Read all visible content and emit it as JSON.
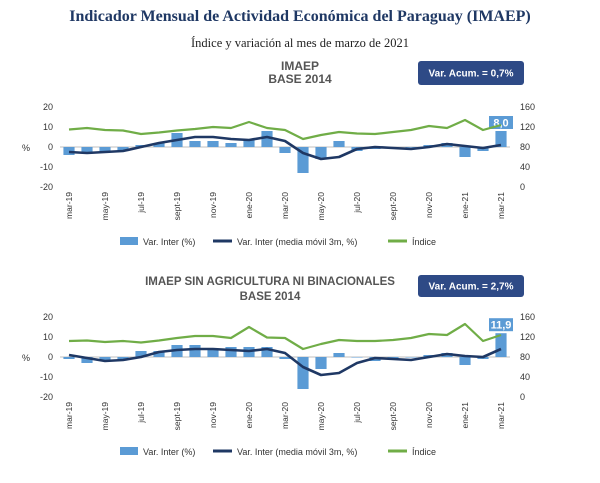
{
  "header": {
    "title": "Indicador Mensual de Actividad Económica del Paraguay (IMAEP)",
    "subtitle": "Índice y variación al mes de marzo de 2021"
  },
  "chart_data": [
    {
      "type": "bar",
      "title": "IMAEP",
      "subtitle": "BASE 2014",
      "badge": "Var. Acum. = 0,7%",
      "ylabel": "%",
      "ylim": [
        -20,
        20
      ],
      "yticks": [
        20,
        10,
        0,
        -10,
        -20
      ],
      "y2lim": [
        0,
        160
      ],
      "y2ticks": [
        160,
        120,
        80,
        40,
        0
      ],
      "tick_labels": [
        "mar-19",
        "may-19",
        "jul-19",
        "sept-19",
        "nov-19",
        "ene-20",
        "mar-20",
        "may-20",
        "jul-20",
        "sept-20",
        "nov-20",
        "ene-21",
        "mar-21"
      ],
      "last_label": "8,0",
      "legend": [
        "Var. Inter (%)",
        "Var. Inter (media móvil 3m, %)",
        "Índice"
      ],
      "colors": {
        "bar": "#5b9bd5",
        "moving_avg": "#1f3864",
        "index": "#70ad47",
        "badge": "#2e4a86"
      },
      "categories": [
        "mar-19",
        "abr-19",
        "may-19",
        "jun-19",
        "jul-19",
        "ago-19",
        "sept-19",
        "oct-19",
        "nov-19",
        "dic-19",
        "ene-20",
        "feb-20",
        "mar-20",
        "abr-20",
        "may-20",
        "jun-20",
        "jul-20",
        "ago-20",
        "sept-20",
        "oct-20",
        "nov-20",
        "dic-20",
        "ene-21",
        "feb-21",
        "mar-21"
      ],
      "series": [
        {
          "name": "Var. Inter (%)",
          "axis": "left",
          "values": [
            -4,
            -3,
            -2,
            -2,
            1,
            2,
            7,
            3,
            3,
            2,
            4,
            8,
            -3,
            -13,
            -6,
            3,
            -2,
            -1,
            0,
            0,
            1,
            2,
            -5,
            -2,
            8.0
          ]
        },
        {
          "name": "Var. Inter (media móvil 3m, %)",
          "axis": "left",
          "values": [
            -2.5,
            -3,
            -2.5,
            -2,
            0,
            2,
            3.5,
            5,
            5,
            4,
            3.5,
            5,
            3,
            -3,
            -6,
            -5,
            -1,
            0,
            -0.5,
            -1,
            0,
            1.5,
            0.5,
            -0.5,
            1
          ]
        },
        {
          "name": "Índice",
          "axis": "right",
          "values": [
            115,
            118,
            114,
            113,
            106,
            109,
            113,
            116,
            120,
            118,
            130,
            118,
            114,
            96,
            104,
            110,
            107,
            106,
            110,
            114,
            122,
            118,
            134,
            114,
            124
          ]
        }
      ]
    },
    {
      "type": "bar",
      "title": "IMAEP SIN AGRICULTURA NI BINACIONALES",
      "subtitle": "BASE 2014",
      "badge": "Var. Acum. = 2,7%",
      "ylabel": "%",
      "ylim": [
        -20,
        20
      ],
      "yticks": [
        20,
        10,
        0,
        -10,
        -20
      ],
      "y2lim": [
        0,
        160
      ],
      "y2ticks": [
        160,
        120,
        80,
        40,
        0
      ],
      "tick_labels": [
        "mar-19",
        "may-19",
        "jul-19",
        "sept-19",
        "nov-19",
        "ene-20",
        "mar-20",
        "may-20",
        "jul-20",
        "sept-20",
        "nov-20",
        "ene-21",
        "mar-21"
      ],
      "last_label": "11,9",
      "legend": [
        "Var. Inter (%)",
        "Var. Inter (media móvil 3m, %)",
        "Índice"
      ],
      "colors": {
        "bar": "#5b9bd5",
        "moving_avg": "#1f3864",
        "index": "#70ad47",
        "badge": "#2e4a86"
      },
      "categories": [
        "mar-19",
        "abr-19",
        "may-19",
        "jun-19",
        "jul-19",
        "ago-19",
        "sept-19",
        "oct-19",
        "nov-19",
        "dic-19",
        "ene-20",
        "feb-20",
        "mar-20",
        "abr-20",
        "may-20",
        "jun-20",
        "jul-20",
        "ago-20",
        "sept-20",
        "oct-20",
        "nov-20",
        "dic-20",
        "ene-21",
        "feb-21",
        "mar-21"
      ],
      "series": [
        {
          "name": "Var. Inter (%)",
          "axis": "left",
          "values": [
            -1,
            -3,
            -2,
            -1,
            3,
            3,
            6,
            6,
            4,
            5,
            5,
            5,
            -1,
            -16,
            -6,
            2,
            0,
            -2,
            -1,
            0,
            1,
            2,
            -4,
            -1,
            11.9
          ]
        },
        {
          "name": "Var. Inter (media móvil 3m, %)",
          "axis": "left",
          "values": [
            1,
            -0.5,
            -2,
            -1.5,
            0,
            2.5,
            3.5,
            4,
            4,
            3.5,
            3,
            4,
            2,
            -5,
            -9,
            -8,
            -3,
            -0.5,
            -1,
            -1.5,
            0,
            1.5,
            0.5,
            0,
            4
          ]
        },
        {
          "name": "Índice",
          "axis": "right",
          "values": [
            112,
            113,
            110,
            112,
            109,
            113,
            118,
            122,
            122,
            118,
            140,
            119,
            118,
            96,
            106,
            114,
            112,
            112,
            114,
            118,
            126,
            124,
            146,
            112,
            124
          ]
        }
      ]
    }
  ]
}
